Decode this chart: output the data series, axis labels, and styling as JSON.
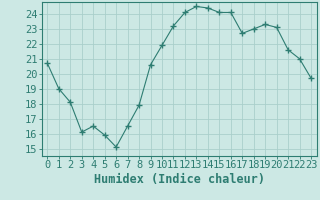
{
  "x": [
    0,
    1,
    2,
    3,
    4,
    5,
    6,
    7,
    8,
    9,
    10,
    11,
    12,
    13,
    14,
    15,
    16,
    17,
    18,
    19,
    20,
    21,
    22,
    23
  ],
  "y": [
    20.7,
    19.0,
    18.1,
    16.1,
    16.5,
    15.9,
    15.1,
    16.5,
    17.9,
    20.6,
    21.9,
    23.2,
    24.1,
    24.5,
    24.4,
    24.1,
    24.1,
    22.7,
    23.0,
    23.3,
    23.1,
    21.6,
    21.0,
    19.7
  ],
  "line_color": "#2e7d72",
  "bg_color": "#cce8e4",
  "grid_color": "#aacfcb",
  "xlabel": "Humidex (Indice chaleur)",
  "ylabel_ticks": [
    15,
    16,
    17,
    18,
    19,
    20,
    21,
    22,
    23,
    24
  ],
  "xlim": [
    -0.5,
    23.5
  ],
  "ylim": [
    14.5,
    24.8
  ],
  "tick_color": "#2e7d72",
  "font_color": "#2e7d72",
  "font_size": 7.5,
  "label_font_size": 8.5
}
